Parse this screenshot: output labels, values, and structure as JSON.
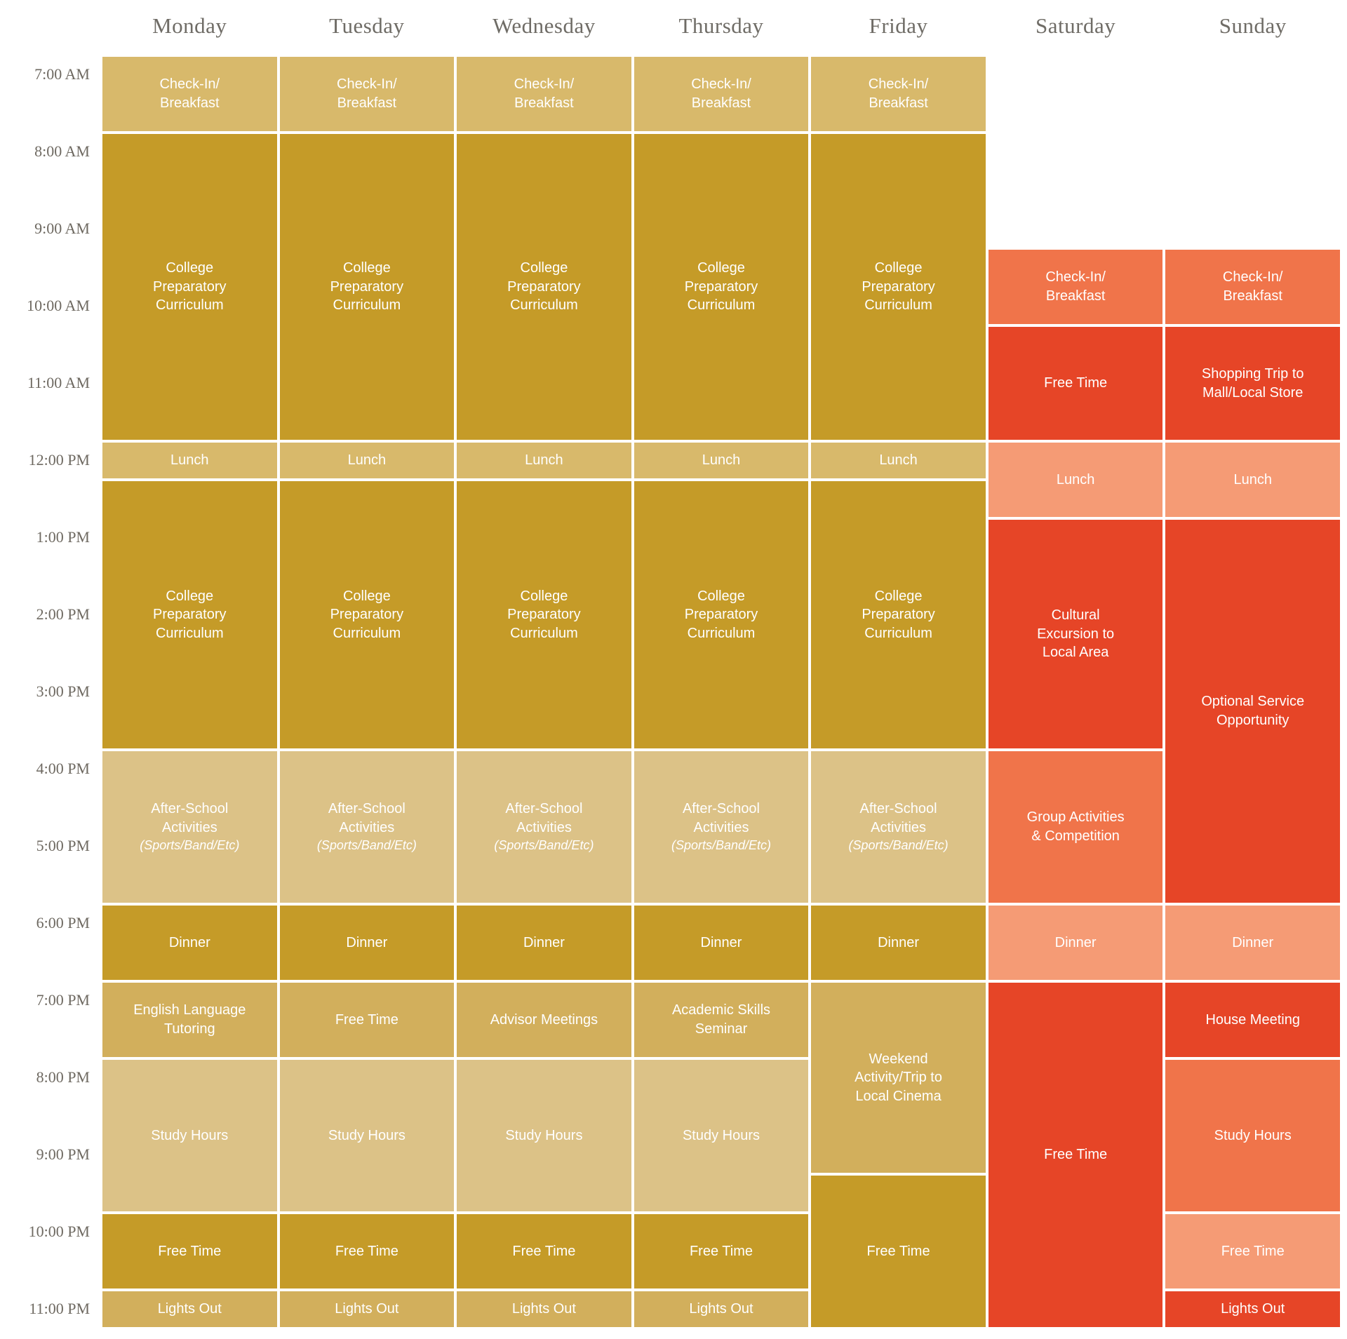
{
  "colors": {
    "weekday_light": "#D8B96B",
    "weekday_dark": "#C59B28",
    "weekday_pale": "#DCC287",
    "weekday_mid": "#D2AF5C",
    "weekend_red": "#E64527",
    "weekend_orange": "#F0744A",
    "weekend_salmon": "#F59B75",
    "header_text": "#6F6C66",
    "time_text": "#6E6961",
    "event_text": "#FFFFFF"
  },
  "chart_data": {
    "type": "table",
    "axis_start": "7:00 AM",
    "axis_end": "11:30 PM",
    "slot_minutes": 30,
    "time_labels": [
      "7:00 AM",
      "8:00 AM",
      "9:00 AM",
      "10:00 AM",
      "11:00 AM",
      "12:00 PM",
      "1:00 PM",
      "2:00 PM",
      "3:00 PM",
      "4:00 PM",
      "5:00 PM",
      "6:00 PM",
      "7:00 PM",
      "8:00 PM",
      "9:00 PM",
      "10:00 PM",
      "11:00 PM"
    ],
    "columns": [
      {
        "day": "Monday",
        "events": [
          {
            "start": "7:00 AM",
            "end": "8:00 AM",
            "lines": [
              "Check-In/",
              "Breakfast"
            ],
            "color": "weekday_light"
          },
          {
            "start": "8:00 AM",
            "end": "12:00 PM",
            "lines": [
              "College",
              "Preparatory",
              "Curriculum"
            ],
            "color": "weekday_dark"
          },
          {
            "start": "12:00 PM",
            "end": "12:30 PM",
            "lines": [
              "Lunch"
            ],
            "color": "weekday_light"
          },
          {
            "start": "12:30 PM",
            "end": "4:00 PM",
            "lines": [
              "College",
              "Preparatory",
              "Curriculum"
            ],
            "color": "weekday_dark"
          },
          {
            "start": "4:00 PM",
            "end": "6:00 PM",
            "lines": [
              "After-School",
              "Activities"
            ],
            "sub": "(Sports/Band/Etc)",
            "color": "weekday_pale"
          },
          {
            "start": "6:00 PM",
            "end": "7:00 PM",
            "lines": [
              "Dinner"
            ],
            "color": "weekday_dark"
          },
          {
            "start": "7:00 PM",
            "end": "8:00 PM",
            "lines": [
              "English Language",
              "Tutoring"
            ],
            "color": "weekday_mid"
          },
          {
            "start": "8:00 PM",
            "end": "10:00 PM",
            "lines": [
              "Study Hours"
            ],
            "color": "weekday_pale"
          },
          {
            "start": "10:00 PM",
            "end": "11:00 PM",
            "lines": [
              "Free Time"
            ],
            "color": "weekday_dark"
          },
          {
            "start": "11:00 PM",
            "end": "11:30 PM",
            "lines": [
              "Lights Out"
            ],
            "color": "weekday_mid"
          }
        ]
      },
      {
        "day": "Tuesday",
        "events": [
          {
            "start": "7:00 AM",
            "end": "8:00 AM",
            "lines": [
              "Check-In/",
              "Breakfast"
            ],
            "color": "weekday_light"
          },
          {
            "start": "8:00 AM",
            "end": "12:00 PM",
            "lines": [
              "College",
              "Preparatory",
              "Curriculum"
            ],
            "color": "weekday_dark"
          },
          {
            "start": "12:00 PM",
            "end": "12:30 PM",
            "lines": [
              "Lunch"
            ],
            "color": "weekday_light"
          },
          {
            "start": "12:30 PM",
            "end": "4:00 PM",
            "lines": [
              "College",
              "Preparatory",
              "Curriculum"
            ],
            "color": "weekday_dark"
          },
          {
            "start": "4:00 PM",
            "end": "6:00 PM",
            "lines": [
              "After-School",
              "Activities"
            ],
            "sub": "(Sports/Band/Etc)",
            "color": "weekday_pale"
          },
          {
            "start": "6:00 PM",
            "end": "7:00 PM",
            "lines": [
              "Dinner"
            ],
            "color": "weekday_dark"
          },
          {
            "start": "7:00 PM",
            "end": "8:00 PM",
            "lines": [
              "Free Time"
            ],
            "color": "weekday_mid"
          },
          {
            "start": "8:00 PM",
            "end": "10:00 PM",
            "lines": [
              "Study Hours"
            ],
            "color": "weekday_pale"
          },
          {
            "start": "10:00 PM",
            "end": "11:00 PM",
            "lines": [
              "Free Time"
            ],
            "color": "weekday_dark"
          },
          {
            "start": "11:00 PM",
            "end": "11:30 PM",
            "lines": [
              "Lights Out"
            ],
            "color": "weekday_mid"
          }
        ]
      },
      {
        "day": "Wednesday",
        "events": [
          {
            "start": "7:00 AM",
            "end": "8:00 AM",
            "lines": [
              "Check-In/",
              "Breakfast"
            ],
            "color": "weekday_light"
          },
          {
            "start": "8:00 AM",
            "end": "12:00 PM",
            "lines": [
              "College",
              "Preparatory",
              "Curriculum"
            ],
            "color": "weekday_dark"
          },
          {
            "start": "12:00 PM",
            "end": "12:30 PM",
            "lines": [
              "Lunch"
            ],
            "color": "weekday_light"
          },
          {
            "start": "12:30 PM",
            "end": "4:00 PM",
            "lines": [
              "College",
              "Preparatory",
              "Curriculum"
            ],
            "color": "weekday_dark"
          },
          {
            "start": "4:00 PM",
            "end": "6:00 PM",
            "lines": [
              "After-School",
              "Activities"
            ],
            "sub": "(Sports/Band/Etc)",
            "color": "weekday_pale"
          },
          {
            "start": "6:00 PM",
            "end": "7:00 PM",
            "lines": [
              "Dinner"
            ],
            "color": "weekday_dark"
          },
          {
            "start": "7:00 PM",
            "end": "8:00 PM",
            "lines": [
              "Advisor Meetings"
            ],
            "color": "weekday_mid"
          },
          {
            "start": "8:00 PM",
            "end": "10:00 PM",
            "lines": [
              "Study Hours"
            ],
            "color": "weekday_pale"
          },
          {
            "start": "10:00 PM",
            "end": "11:00 PM",
            "lines": [
              "Free Time"
            ],
            "color": "weekday_dark"
          },
          {
            "start": "11:00 PM",
            "end": "11:30 PM",
            "lines": [
              "Lights Out"
            ],
            "color": "weekday_mid"
          }
        ]
      },
      {
        "day": "Thursday",
        "events": [
          {
            "start": "7:00 AM",
            "end": "8:00 AM",
            "lines": [
              "Check-In/",
              "Breakfast"
            ],
            "color": "weekday_light"
          },
          {
            "start": "8:00 AM",
            "end": "12:00 PM",
            "lines": [
              "College",
              "Preparatory",
              "Curriculum"
            ],
            "color": "weekday_dark"
          },
          {
            "start": "12:00 PM",
            "end": "12:30 PM",
            "lines": [
              "Lunch"
            ],
            "color": "weekday_light"
          },
          {
            "start": "12:30 PM",
            "end": "4:00 PM",
            "lines": [
              "College",
              "Preparatory",
              "Curriculum"
            ],
            "color": "weekday_dark"
          },
          {
            "start": "4:00 PM",
            "end": "6:00 PM",
            "lines": [
              "After-School",
              "Activities"
            ],
            "sub": "(Sports/Band/Etc)",
            "color": "weekday_pale"
          },
          {
            "start": "6:00 PM",
            "end": "7:00 PM",
            "lines": [
              "Dinner"
            ],
            "color": "weekday_dark"
          },
          {
            "start": "7:00 PM",
            "end": "8:00 PM",
            "lines": [
              "Academic Skills",
              "Seminar"
            ],
            "color": "weekday_mid"
          },
          {
            "start": "8:00 PM",
            "end": "10:00 PM",
            "lines": [
              "Study Hours"
            ],
            "color": "weekday_pale"
          },
          {
            "start": "10:00 PM",
            "end": "11:00 PM",
            "lines": [
              "Free Time"
            ],
            "color": "weekday_dark"
          },
          {
            "start": "11:00 PM",
            "end": "11:30 PM",
            "lines": [
              "Lights Out"
            ],
            "color": "weekday_mid"
          }
        ]
      },
      {
        "day": "Friday",
        "events": [
          {
            "start": "7:00 AM",
            "end": "8:00 AM",
            "lines": [
              "Check-In/",
              "Breakfast"
            ],
            "color": "weekday_light"
          },
          {
            "start": "8:00 AM",
            "end": "12:00 PM",
            "lines": [
              "College",
              "Preparatory",
              "Curriculum"
            ],
            "color": "weekday_dark"
          },
          {
            "start": "12:00 PM",
            "end": "12:30 PM",
            "lines": [
              "Lunch"
            ],
            "color": "weekday_light"
          },
          {
            "start": "12:30 PM",
            "end": "4:00 PM",
            "lines": [
              "College",
              "Preparatory",
              "Curriculum"
            ],
            "color": "weekday_dark"
          },
          {
            "start": "4:00 PM",
            "end": "6:00 PM",
            "lines": [
              "After-School",
              "Activities"
            ],
            "sub": "(Sports/Band/Etc)",
            "color": "weekday_pale"
          },
          {
            "start": "6:00 PM",
            "end": "7:00 PM",
            "lines": [
              "Dinner"
            ],
            "color": "weekday_dark"
          },
          {
            "start": "7:00 PM",
            "end": "9:30 PM",
            "lines": [
              "Weekend",
              "Activity/Trip to",
              "Local Cinema"
            ],
            "color": "weekday_mid"
          },
          {
            "start": "9:30 PM",
            "end": "11:30 PM",
            "lines": [
              "Free Time"
            ],
            "color": "weekday_dark"
          }
        ]
      },
      {
        "day": "Saturday",
        "events": [
          {
            "start": "9:30 AM",
            "end": "10:30 AM",
            "lines": [
              "Check-In/",
              "Breakfast"
            ],
            "color": "weekend_orange"
          },
          {
            "start": "10:30 AM",
            "end": "12:00 PM",
            "lines": [
              "Free Time"
            ],
            "color": "weekend_red"
          },
          {
            "start": "12:00 PM",
            "end": "1:00 PM",
            "lines": [
              "Lunch"
            ],
            "color": "weekend_salmon"
          },
          {
            "start": "1:00 PM",
            "end": "4:00 PM",
            "lines": [
              "Cultural",
              "Excursion to",
              "Local Area"
            ],
            "color": "weekend_red"
          },
          {
            "start": "4:00 PM",
            "end": "6:00 PM",
            "lines": [
              "Group Activities",
              "& Competition"
            ],
            "color": "weekend_orange"
          },
          {
            "start": "6:00 PM",
            "end": "7:00 PM",
            "lines": [
              "Dinner"
            ],
            "color": "weekend_salmon"
          },
          {
            "start": "7:00 PM",
            "end": "11:30 PM",
            "lines": [
              "Free Time"
            ],
            "color": "weekend_red"
          }
        ]
      },
      {
        "day": "Sunday",
        "events": [
          {
            "start": "9:30 AM",
            "end": "10:30 AM",
            "lines": [
              "Check-In/",
              "Breakfast"
            ],
            "color": "weekend_orange"
          },
          {
            "start": "10:30 AM",
            "end": "12:00 PM",
            "lines": [
              "Shopping Trip to",
              "Mall/Local Store"
            ],
            "color": "weekend_red"
          },
          {
            "start": "12:00 PM",
            "end": "1:00 PM",
            "lines": [
              "Lunch"
            ],
            "color": "weekend_salmon"
          },
          {
            "start": "1:00 PM",
            "end": "6:00 PM",
            "lines": [
              "Optional Service",
              "Opportunity"
            ],
            "color": "weekend_red"
          },
          {
            "start": "6:00 PM",
            "end": "7:00 PM",
            "lines": [
              "Dinner"
            ],
            "color": "weekend_salmon"
          },
          {
            "start": "7:00 PM",
            "end": "8:00 PM",
            "lines": [
              "House Meeting"
            ],
            "color": "weekend_red"
          },
          {
            "start": "8:00 PM",
            "end": "10:00 PM",
            "lines": [
              "Study Hours"
            ],
            "color": "weekend_orange"
          },
          {
            "start": "10:00 PM",
            "end": "11:00 PM",
            "lines": [
              "Free Time"
            ],
            "color": "weekend_salmon"
          },
          {
            "start": "11:00 PM",
            "end": "11:30 PM",
            "lines": [
              "Lights Out"
            ],
            "color": "weekend_red"
          }
        ]
      }
    ]
  }
}
